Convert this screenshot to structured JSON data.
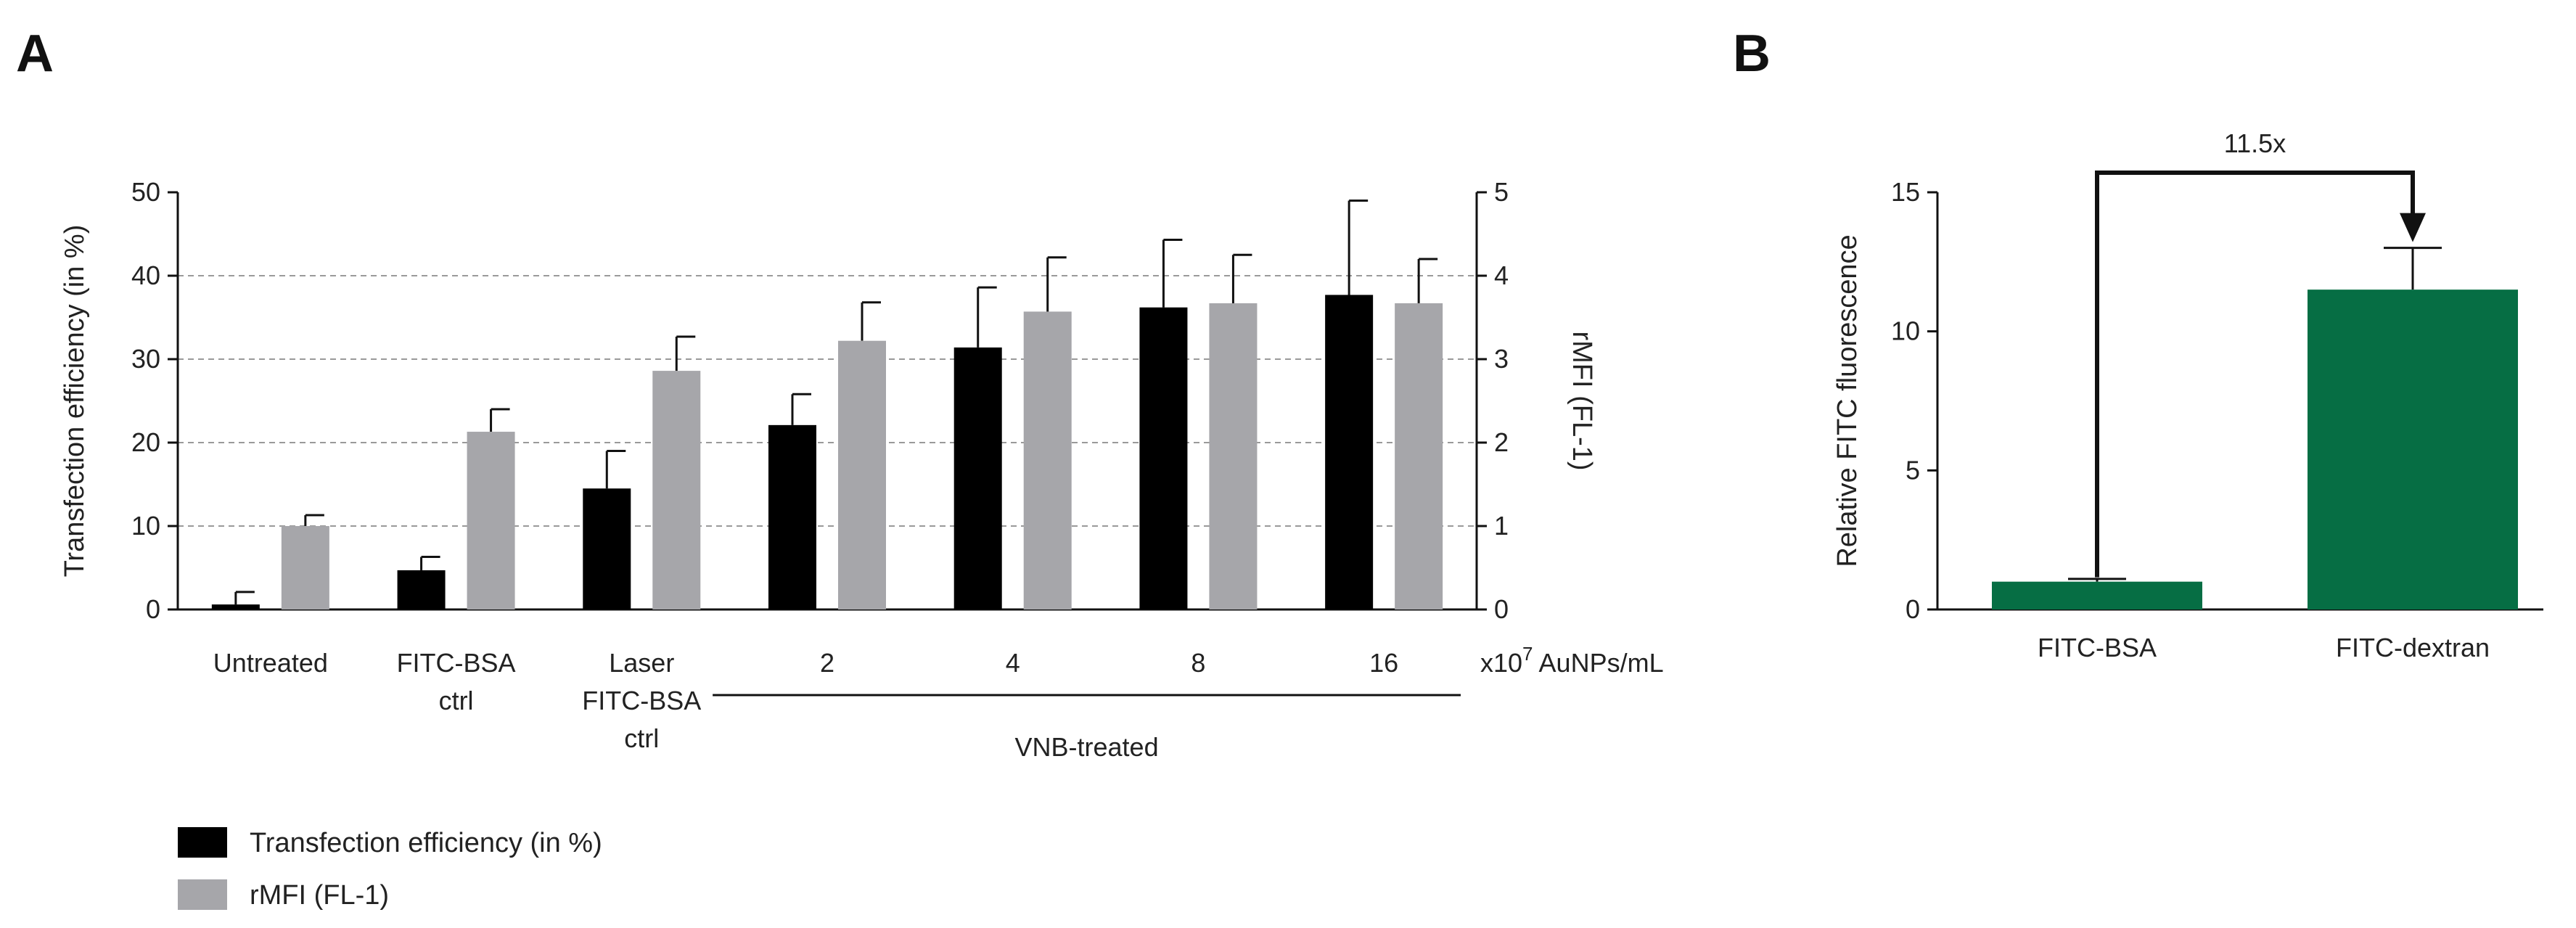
{
  "chart_data": [
    {
      "panel": "A",
      "type": "bar",
      "ylabel": "Transfection efficiency (in %)",
      "y2label": "rMFI (FL-1)",
      "ylim": [
        0,
        50
      ],
      "y2lim": [
        0,
        5
      ],
      "yticks": [
        "0",
        "10",
        "20",
        "30",
        "40",
        "50"
      ],
      "y2ticks": [
        "0",
        "1",
        "2",
        "3",
        "4",
        "5"
      ],
      "grid": "dashed horizontal",
      "categories": [
        [
          "Untreated"
        ],
        [
          "FITC-BSA",
          "ctrl"
        ],
        [
          "Laser",
          "FITC-BSA",
          "ctrl"
        ],
        [
          "2"
        ],
        [
          "4"
        ],
        [
          "8"
        ],
        [
          "16"
        ]
      ],
      "x_unit_prefix": "x10",
      "x_unit_exponent": "7",
      "x_unit_suffix": " AuNPs/mL",
      "group_label": "VNB-treated",
      "series": [
        {
          "name": "Transfection efficiency (in %)",
          "axis": "left",
          "color": "#000000",
          "values": [
            0.6,
            4.7,
            14.5,
            22.1,
            31.4,
            36.2,
            37.7
          ],
          "errors": [
            1.5,
            1.6,
            4.5,
            3.7,
            7.2,
            8.1,
            11.3
          ]
        },
        {
          "name": "rMFI (FL-1)",
          "axis": "right",
          "color": "#a6a6aa",
          "values": [
            1.0,
            2.13,
            2.86,
            3.22,
            3.57,
            3.67,
            3.67
          ],
          "errors": [
            0.13,
            0.27,
            0.41,
            0.46,
            0.65,
            0.58,
            0.53
          ]
        }
      ],
      "legend": [
        "Transfection efficiency (in %)",
        "rMFI (FL-1)"
      ],
      "legend_position": "bottom-left"
    },
    {
      "panel": "B",
      "type": "bar",
      "ylabel": "Relative FITC fluorescence",
      "ylim": [
        0,
        15
      ],
      "yticks": [
        "0",
        "5",
        "10",
        "15"
      ],
      "categories": [
        "FITC-BSA",
        "FITC-dextran"
      ],
      "color": "#066e44",
      "values": [
        1.0,
        11.5
      ],
      "errors": [
        0.1,
        1.5
      ],
      "annotation": "11.5x"
    }
  ],
  "panel_labels": {
    "a": "A",
    "b": "B"
  }
}
